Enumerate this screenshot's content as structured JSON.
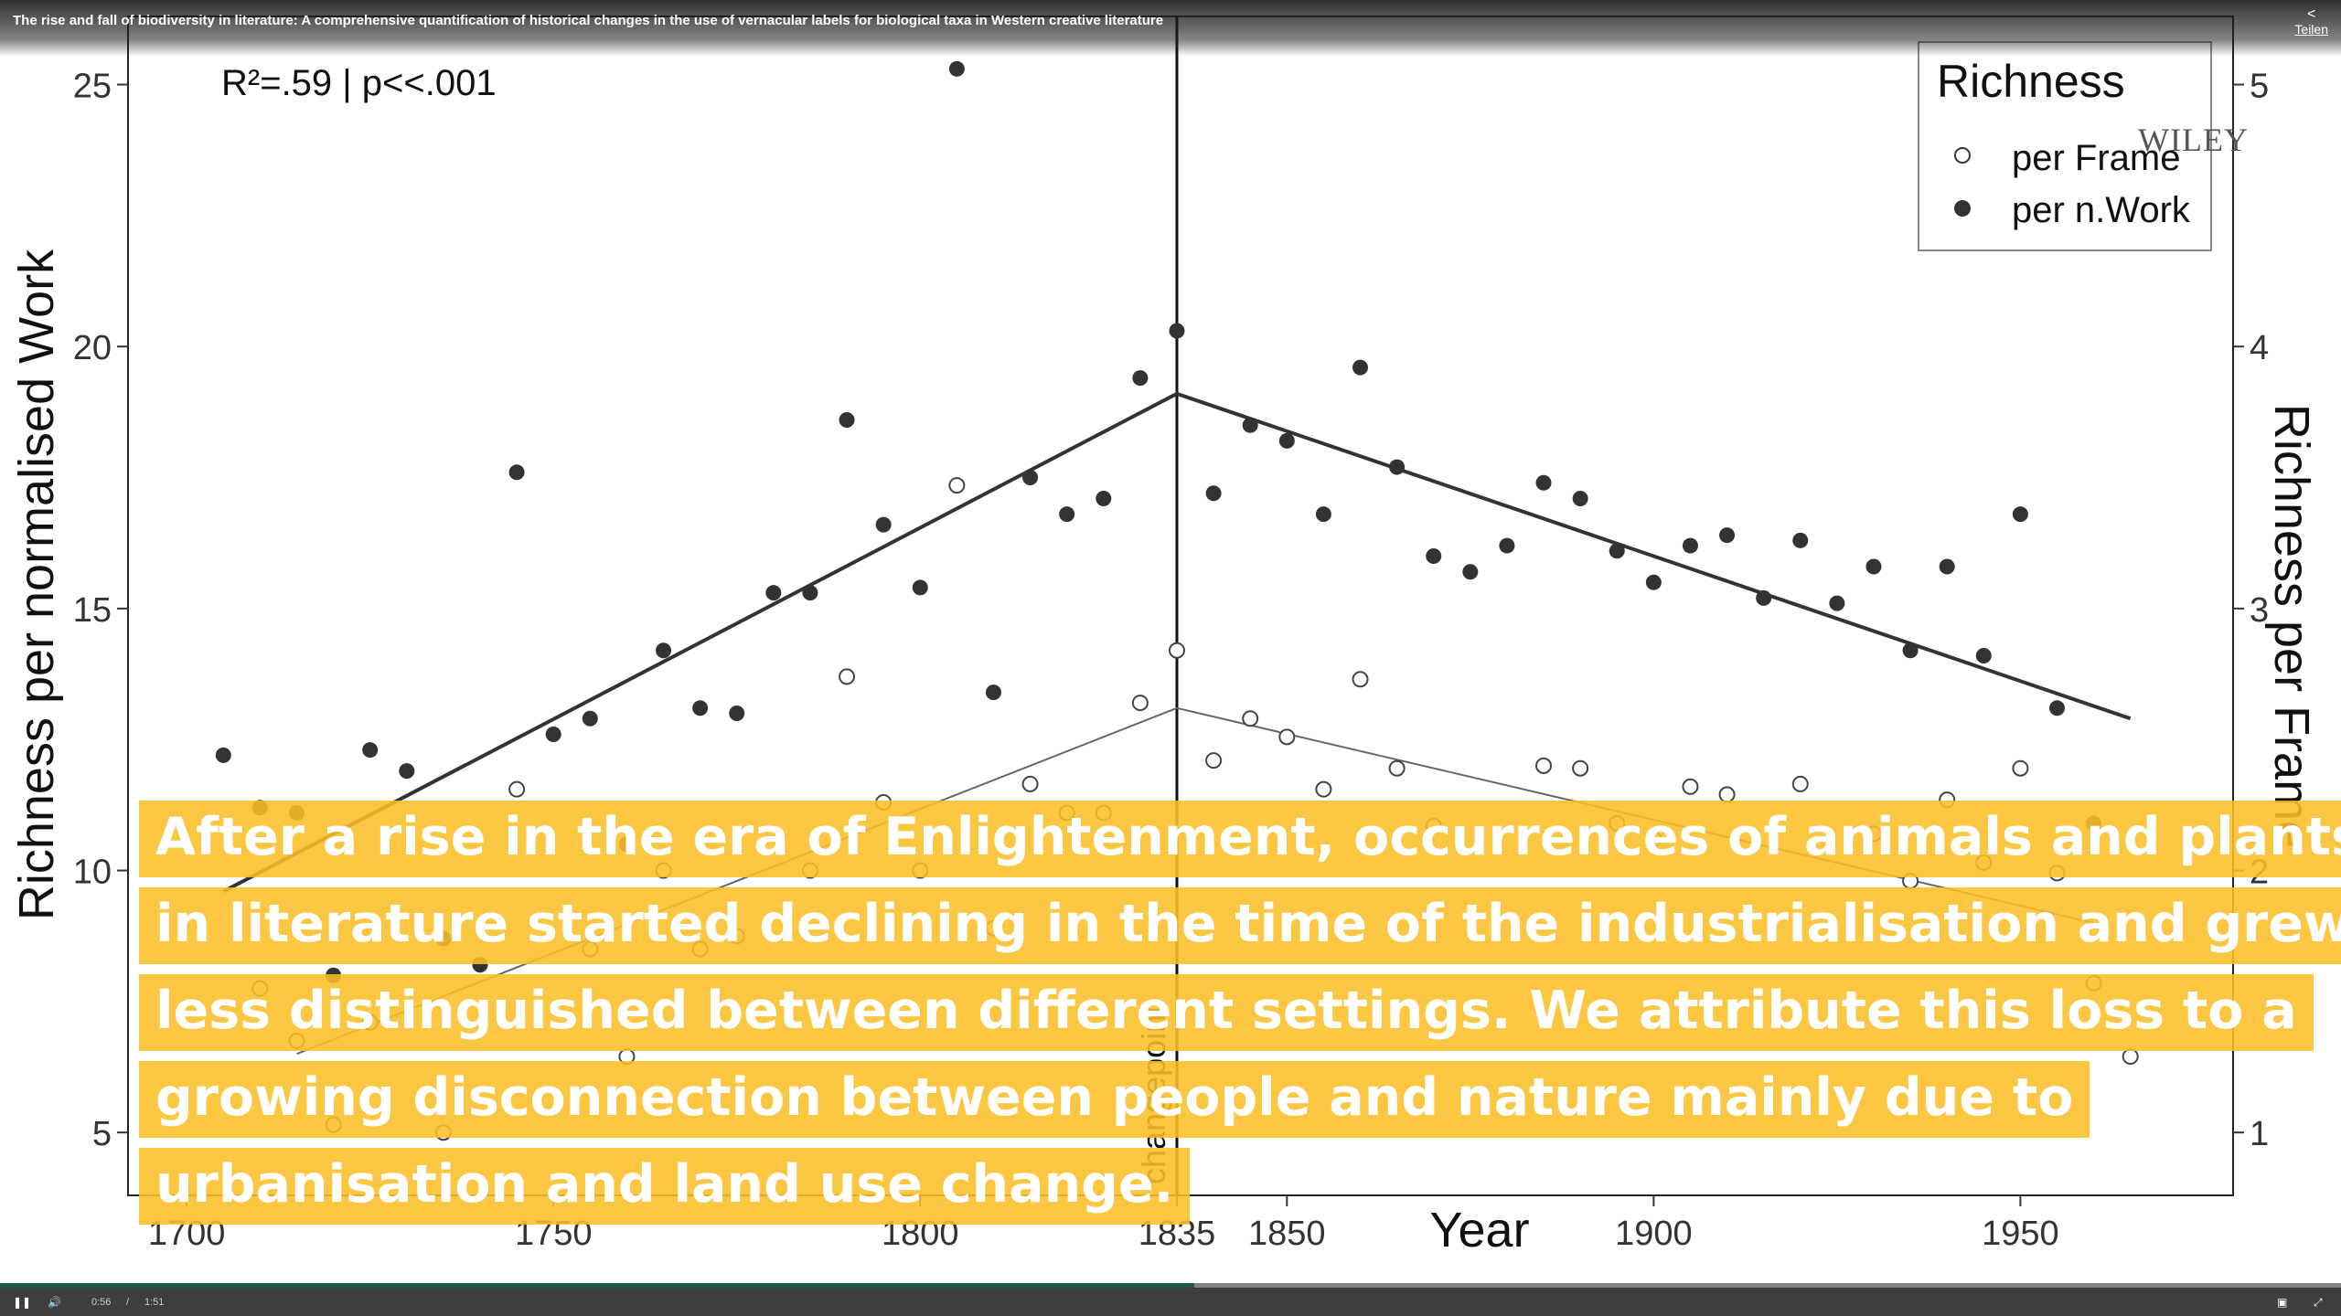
{
  "video": {
    "title": "The rise and fall of biodiversity in literature: A comprehensive quantification of historical changes in the use of vernacular labels for biological taxa in Western creative literature",
    "share_label": "Teilen",
    "share_icon": "share-icon",
    "current_time": "0:56",
    "time_separator": "/",
    "duration": "1:51",
    "progress_fraction": 0.51,
    "accent_color": "#1a5c3a"
  },
  "publisher_logo": "WILEY",
  "caption": {
    "lines": [
      "After a rise in the era of Enlightenment, occurrences of animals and plants",
      "in literature started declining in the time of the industrialisation and grew",
      "less distinguished between different settings. We attribute this loss to a",
      "growing disconnection between people and nature mainly due to",
      "urbanisation and land use change."
    ],
    "background_color": "#fbbe28"
  },
  "chart_data": {
    "type": "scatter",
    "annotation": "R²=.59 | p<<.001",
    "xlabel": "Year",
    "ylabel": "Richness per normalised Work",
    "y2label": "Richness per Frame",
    "xlim": [
      1692,
      1979
    ],
    "ylim": [
      3.8,
      26.3
    ],
    "y2lim": [
      0.76,
      5.26
    ],
    "x_ticks": [
      1700,
      1750,
      1800,
      1835,
      1850,
      1900,
      1950
    ],
    "y_ticks": [
      5,
      10,
      15,
      20,
      25
    ],
    "y2_ticks": [
      1,
      2,
      3,
      4,
      5
    ],
    "changepoint": {
      "x": 1835,
      "label": "changepoint"
    },
    "legend": {
      "title": "Richness",
      "position": "top-right"
    },
    "series": [
      {
        "name": "per n.Work",
        "marker": "filled-circle",
        "axis": "left",
        "points": [
          [
            1705,
            12.2
          ],
          [
            1710,
            11.2
          ],
          [
            1715,
            11.1
          ],
          [
            1725,
            12.3
          ],
          [
            1730,
            11.9
          ],
          [
            1745,
            17.6
          ],
          [
            1750,
            12.6
          ],
          [
            1755,
            12.9
          ],
          [
            1760,
            10.5
          ],
          [
            1765,
            14.2
          ],
          [
            1770,
            13.1
          ],
          [
            1775,
            13.0
          ],
          [
            1780,
            15.3
          ],
          [
            1785,
            15.3
          ],
          [
            1790,
            18.6
          ],
          [
            1795,
            16.6
          ],
          [
            1800,
            15.4
          ],
          [
            1805,
            25.3
          ],
          [
            1810,
            13.4
          ],
          [
            1815,
            17.5
          ],
          [
            1820,
            16.8
          ],
          [
            1825,
            17.1
          ],
          [
            1830,
            19.4
          ],
          [
            1835,
            20.3
          ],
          [
            1840,
            17.2
          ],
          [
            1845,
            18.5
          ],
          [
            1850,
            18.2
          ],
          [
            1855,
            16.8
          ],
          [
            1860,
            19.6
          ],
          [
            1865,
            17.7
          ],
          [
            1870,
            16.0
          ],
          [
            1875,
            15.7
          ],
          [
            1880,
            16.2
          ],
          [
            1885,
            17.4
          ],
          [
            1890,
            17.1
          ],
          [
            1895,
            16.1
          ],
          [
            1900,
            15.5
          ],
          [
            1905,
            16.2
          ],
          [
            1910,
            16.4
          ],
          [
            1915,
            15.2
          ],
          [
            1920,
            16.3
          ],
          [
            1925,
            15.1
          ],
          [
            1930,
            15.8
          ],
          [
            1935,
            14.2
          ],
          [
            1940,
            15.8
          ],
          [
            1945,
            14.1
          ],
          [
            1950,
            16.8
          ],
          [
            1955,
            13.1
          ],
          [
            1960,
            10.9
          ],
          [
            1735,
            8.7
          ],
          [
            1740,
            8.2
          ],
          [
            1720,
            8.0
          ]
        ],
        "trend": [
          [
            1705,
            9.6
          ],
          [
            1835,
            19.1
          ],
          [
            1965,
            12.9
          ]
        ]
      },
      {
        "name": "per Frame",
        "marker": "open-circle",
        "axis": "right",
        "points": [
          [
            1710,
            1.55
          ],
          [
            1715,
            1.35
          ],
          [
            1720,
            1.03
          ],
          [
            1725,
            1.42
          ],
          [
            1735,
            1.0
          ],
          [
            1745,
            2.31
          ],
          [
            1755,
            1.7
          ],
          [
            1760,
            1.29
          ],
          [
            1765,
            2.0
          ],
          [
            1770,
            1.7
          ],
          [
            1775,
            1.75
          ],
          [
            1785,
            2.0
          ],
          [
            1790,
            2.74
          ],
          [
            1795,
            2.26
          ],
          [
            1800,
            2.0
          ],
          [
            1805,
            3.47
          ],
          [
            1810,
            1.78
          ],
          [
            1815,
            2.33
          ],
          [
            1820,
            2.22
          ],
          [
            1825,
            2.22
          ],
          [
            1830,
            2.64
          ],
          [
            1835,
            2.84
          ],
          [
            1840,
            2.42
          ],
          [
            1845,
            2.58
          ],
          [
            1850,
            2.51
          ],
          [
            1855,
            2.31
          ],
          [
            1860,
            2.73
          ],
          [
            1865,
            2.39
          ],
          [
            1870,
            2.17
          ],
          [
            1885,
            2.4
          ],
          [
            1890,
            2.39
          ],
          [
            1895,
            2.18
          ],
          [
            1900,
            2.12
          ],
          [
            1905,
            2.32
          ],
          [
            1910,
            2.29
          ],
          [
            1920,
            2.33
          ],
          [
            1930,
            2.14
          ],
          [
            1935,
            1.96
          ],
          [
            1940,
            2.27
          ],
          [
            1945,
            2.03
          ],
          [
            1950,
            2.39
          ],
          [
            1955,
            1.99
          ],
          [
            1960,
            1.57
          ],
          [
            1965,
            1.29
          ]
        ],
        "trend": [
          [
            1715,
            1.3
          ],
          [
            1835,
            2.62
          ],
          [
            1960,
            1.8
          ]
        ]
      }
    ]
  }
}
